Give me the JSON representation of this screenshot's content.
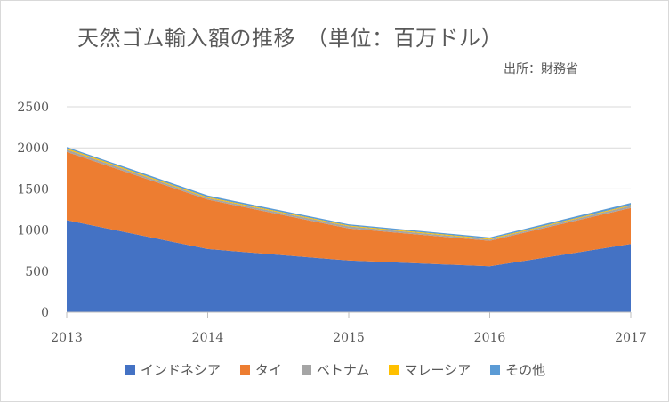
{
  "chart_data": {
    "type": "area",
    "stacked": true,
    "title": "天然ゴム輸入額の推移　（単位：百万ドル）",
    "source": "出所：財務省",
    "x": [
      "2013",
      "2014",
      "2015",
      "2016",
      "2017"
    ],
    "ylim": [
      0,
      2500
    ],
    "yticks": [
      "0",
      "500",
      "1000",
      "1500",
      "2000",
      "2500"
    ],
    "grid": true,
    "legend_position": "bottom",
    "series": [
      {
        "name": "インドネシア",
        "color": "#4472C4",
        "values": [
          1120,
          770,
          630,
          560,
          830
        ]
      },
      {
        "name": "タイ",
        "color": "#ED7D31",
        "values": [
          830,
          600,
          390,
          310,
          440
        ]
      },
      {
        "name": "ベトナム",
        "color": "#A5A5A5",
        "values": [
          30,
          20,
          25,
          15,
          25
        ]
      },
      {
        "name": "マレーシア",
        "color": "#FFC000",
        "values": [
          15,
          10,
          10,
          10,
          10
        ]
      },
      {
        "name": "その他",
        "color": "#5B9BD5",
        "values": [
          15,
          20,
          15,
          15,
          25
        ]
      }
    ]
  }
}
